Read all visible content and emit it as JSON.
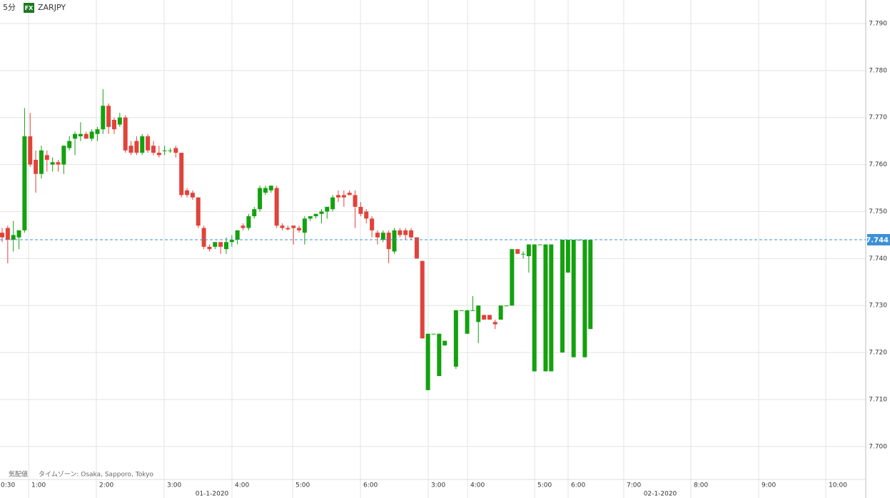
{
  "header": {
    "interval": "5分",
    "badge": "FX",
    "symbol": "ZARJPY"
  },
  "footer": {
    "quote_type": "気配値",
    "timezone": "タイムゾーン: Osaka, Sapporo, Tokyo"
  },
  "chart_data": {
    "type": "candlestick",
    "up_color": "#13a10e",
    "down_color": "#e0433a",
    "grid": true,
    "ylim": [
      7.693,
      7.795
    ],
    "yticks": [
      {
        "value": 7.79,
        "label": "7.790"
      },
      {
        "value": 7.78,
        "label": "7.780"
      },
      {
        "value": 7.77,
        "label": "7.770"
      },
      {
        "value": 7.76,
        "label": "7.760"
      },
      {
        "value": 7.75,
        "label": "7.750"
      },
      {
        "value": 7.74,
        "label": "7.740"
      },
      {
        "value": 7.73,
        "label": "7.730"
      },
      {
        "value": 7.72,
        "label": "7.720"
      },
      {
        "value": 7.71,
        "label": "7.710"
      },
      {
        "value": 7.7,
        "label": "7.700"
      }
    ],
    "last_price": 7.744,
    "last_price_color": "#3d8fd6",
    "xtick_labels": [
      "0:30",
      "1:00",
      "2:00",
      "3:00",
      "4:00",
      "5:00",
      "6:00",
      "3:00",
      "4:00",
      "5:00",
      "6:00",
      "7:00",
      "8:00",
      "9:00",
      "10:00"
    ],
    "date_labels": [
      "01-1-2020",
      "02-1-2020"
    ],
    "open": [
      7.7455,
      7.7465,
      7.744,
      7.7445,
      7.746,
      7.766,
      7.761,
      7.758,
      7.762,
      7.76,
      7.7605,
      7.76,
      7.7635,
      7.7655,
      7.766,
      7.7665,
      7.7655,
      7.7665,
      7.7675,
      7.7725,
      7.7695,
      7.7685,
      7.77,
      7.764,
      7.765,
      7.7625,
      7.766,
      7.764,
      7.7625,
      7.763,
      7.763,
      7.7635,
      7.7625,
      7.7545,
      7.754,
      7.753,
      7.7465,
      7.7425,
      7.7425,
      7.7435,
      7.742,
      7.7435,
      7.744,
      7.747,
      7.7465,
      7.749,
      7.7505,
      7.754,
      7.7545,
      7.755,
      7.747,
      7.7465,
      7.747,
      7.7465,
      7.7455,
      7.7485,
      7.749,
      7.7495,
      7.75,
      7.7505,
      7.7535,
      7.7535,
      7.754,
      7.7535,
      7.751,
      7.75,
      7.7485,
      7.7455,
      7.744,
      7.7455,
      7.7415,
      7.746,
      7.746,
      7.746,
      7.7445,
      7.7395,
      7.712,
      7.724,
      7.715,
      7.7215,
      null,
      7.717,
      7.729,
      7.724,
      7.729,
      7.7265,
      7.728,
      7.728,
      7.7265,
      7.727,
      7.73,
      7.73,
      7.742,
      7.741,
      7.7405,
      7.716,
      7.743,
      7.716,
      7.716,
      null,
      7.72,
      7.737,
      7.719,
      7.744,
      7.719,
      7.725
    ],
    "high": [
      7.7465,
      7.747,
      7.748,
      7.746,
      7.772,
      7.771,
      7.763,
      7.764,
      7.763,
      7.7615,
      7.761,
      7.764,
      7.766,
      7.767,
      7.769,
      7.767,
      7.7675,
      7.768,
      7.776,
      7.773,
      7.77,
      7.771,
      7.7705,
      7.765,
      7.766,
      7.7665,
      7.7665,
      7.765,
      7.764,
      7.764,
      7.7635,
      7.764,
      7.7625,
      7.755,
      7.7545,
      7.753,
      7.747,
      7.743,
      7.7435,
      7.7435,
      7.7445,
      7.745,
      7.746,
      7.7475,
      7.7495,
      7.751,
      7.7555,
      7.7555,
      7.7555,
      7.7555,
      7.7475,
      7.747,
      7.747,
      7.747,
      7.749,
      7.749,
      7.7495,
      7.7505,
      7.751,
      7.7535,
      7.7545,
      7.7545,
      7.7545,
      7.7545,
      7.752,
      7.7505,
      7.749,
      7.746,
      7.746,
      7.746,
      7.7465,
      7.7465,
      7.7465,
      7.7465,
      7.7445,
      7.7395,
      7.724,
      7.724,
      7.724,
      7.7225,
      null,
      7.729,
      7.729,
      7.729,
      7.732,
      7.73,
      7.728,
      7.728,
      7.727,
      7.73,
      7.73,
      7.742,
      7.742,
      7.7415,
      7.743,
      7.743,
      7.743,
      7.743,
      7.743,
      null,
      7.744,
      7.744,
      7.744,
      7.744,
      7.744,
      7.744
    ],
    "low": [
      7.7435,
      7.739,
      7.7415,
      7.742,
      7.7455,
      7.7595,
      7.754,
      7.757,
      7.7585,
      7.7585,
      7.7585,
      7.758,
      7.763,
      7.762,
      7.765,
      7.7655,
      7.765,
      7.765,
      7.7665,
      7.7665,
      7.7665,
      7.768,
      7.7625,
      7.762,
      7.762,
      7.762,
      7.7625,
      7.762,
      7.7615,
      7.762,
      7.7625,
      7.7615,
      7.753,
      7.753,
      7.7525,
      7.7465,
      7.742,
      7.7415,
      7.742,
      7.741,
      7.741,
      7.7425,
      7.743,
      7.746,
      7.746,
      7.7485,
      7.75,
      7.7535,
      7.754,
      7.7465,
      7.746,
      7.746,
      7.743,
      7.7455,
      7.743,
      7.748,
      7.7485,
      7.7475,
      7.7485,
      7.75,
      7.752,
      7.751,
      7.7535,
      7.7465,
      7.749,
      7.7475,
      7.7445,
      7.743,
      7.7435,
      7.739,
      7.741,
      7.7445,
      7.744,
      7.744,
      7.74,
      7.723,
      7.712,
      7.724,
      7.715,
      7.7215,
      null,
      7.7165,
      7.729,
      7.724,
      7.729,
      7.722,
      7.727,
      7.727,
      7.725,
      7.727,
      7.73,
      7.73,
      7.741,
      7.74,
      7.737,
      7.716,
      7.743,
      7.716,
      7.716,
      null,
      7.72,
      7.737,
      7.719,
      7.744,
      7.719,
      7.725
    ],
    "close": [
      7.7445,
      7.744,
      7.745,
      7.746,
      7.766,
      7.76,
      7.758,
      7.763,
      7.761,
      7.7605,
      7.76,
      7.764,
      7.765,
      7.7665,
      7.7665,
      7.7655,
      7.767,
      7.7675,
      7.7725,
      7.768,
      7.7675,
      7.77,
      7.763,
      7.7625,
      7.7625,
      7.766,
      7.763,
      7.7625,
      7.762,
      7.763,
      7.763,
      7.7625,
      7.7535,
      7.7535,
      7.753,
      7.747,
      7.7425,
      7.742,
      7.7435,
      7.7425,
      7.7435,
      7.744,
      7.746,
      7.7465,
      7.749,
      7.7505,
      7.755,
      7.755,
      7.7555,
      7.747,
      7.7465,
      7.7462,
      7.7465,
      7.746,
      7.7485,
      7.749,
      7.7495,
      7.75,
      7.751,
      7.753,
      7.753,
      7.753,
      7.7535,
      7.751,
      7.7495,
      7.7485,
      7.746,
      7.7445,
      7.7455,
      7.742,
      7.746,
      7.745,
      7.745,
      7.7445,
      7.74,
      7.723,
      7.724,
      7.724,
      7.724,
      7.7225,
      null,
      7.729,
      7.729,
      7.729,
      7.729,
      7.73,
      7.727,
      7.727,
      7.726,
      7.73,
      7.73,
      7.742,
      7.741,
      7.741,
      7.743,
      7.743,
      7.743,
      7.743,
      7.743,
      null,
      7.744,
      7.744,
      7.744,
      7.744,
      7.744,
      7.744
    ]
  }
}
